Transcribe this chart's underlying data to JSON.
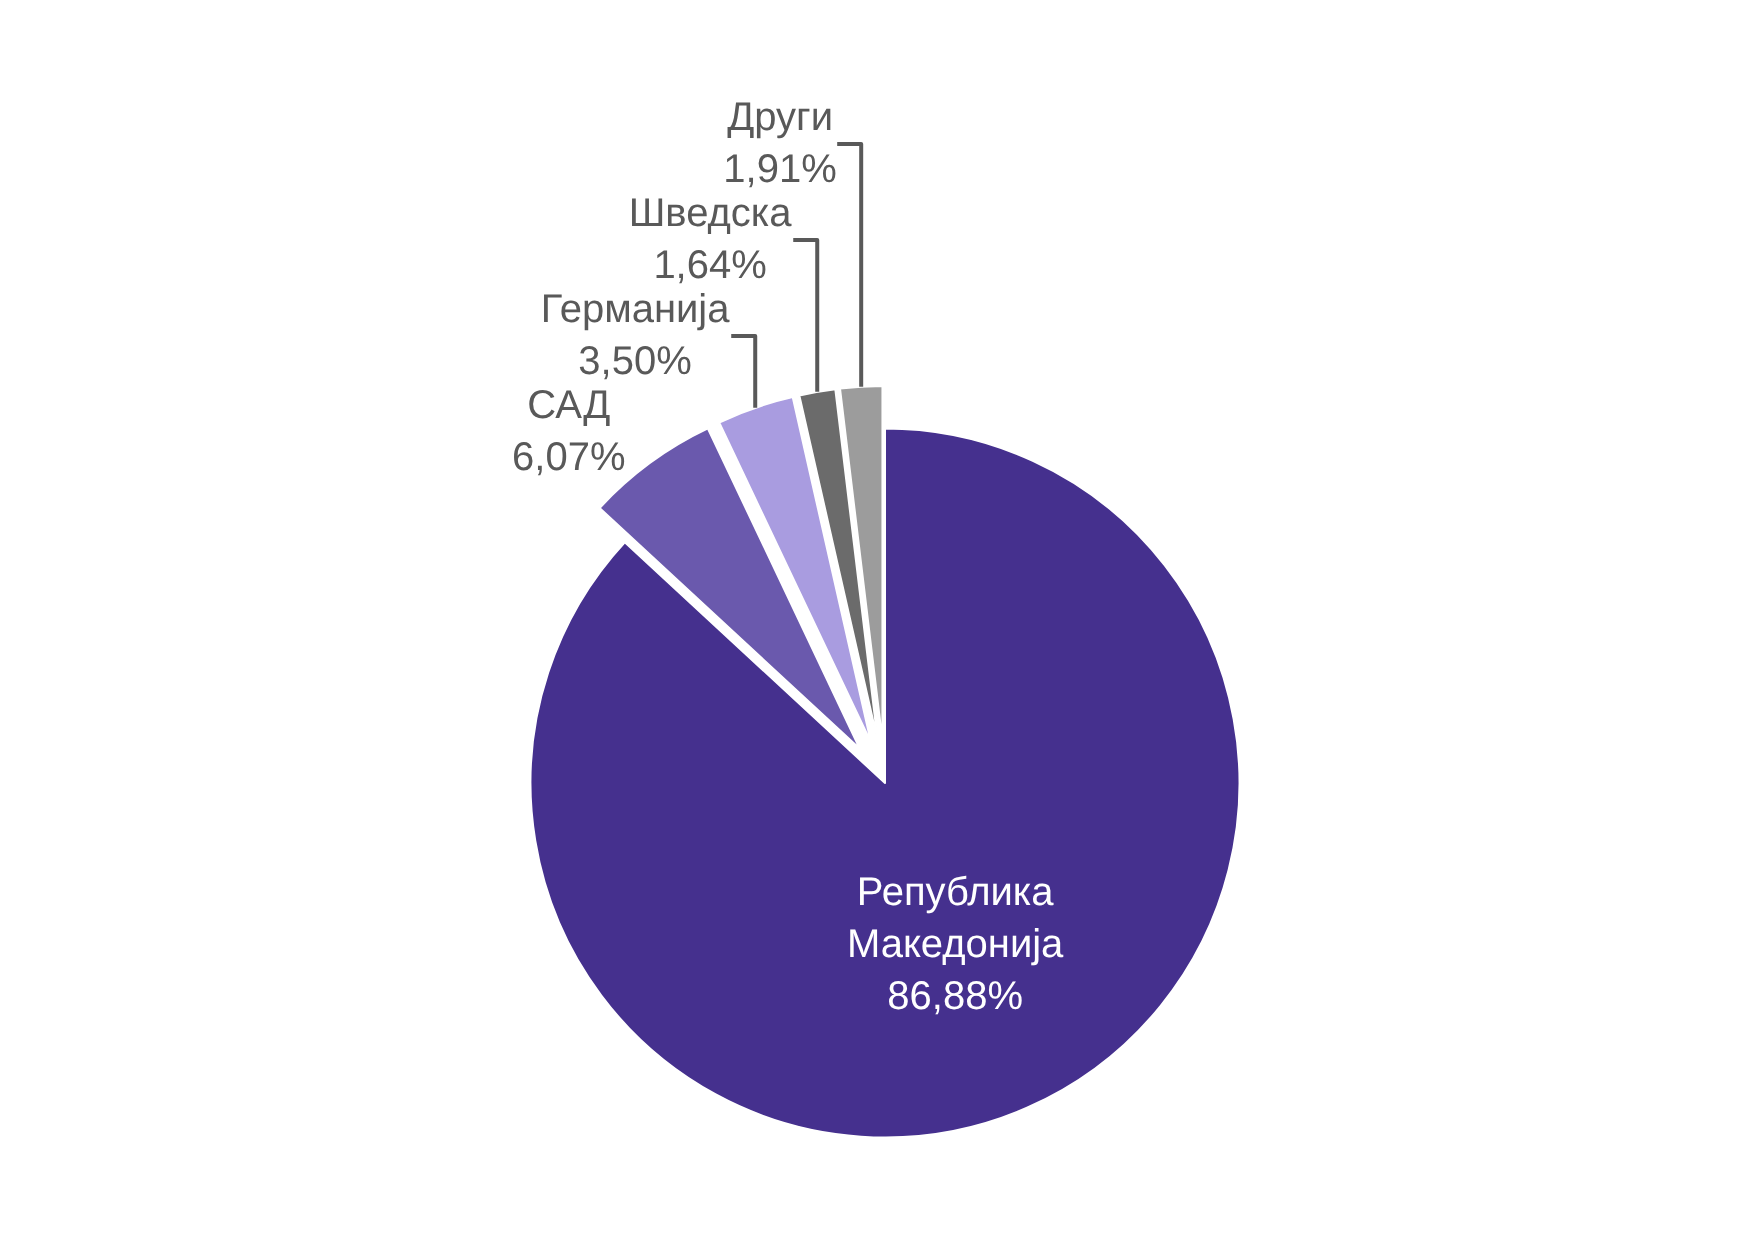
{
  "chart_data": {
    "type": "pie",
    "categories": [
      "Република Македонија",
      "САД",
      "Германија",
      "Шведска",
      "Други"
    ],
    "values": [
      86.88,
      6.07,
      3.5,
      1.64,
      1.91
    ],
    "value_labels": [
      "86,88%",
      "6,07%",
      "3,50%",
      "1,64%",
      "1,91%"
    ],
    "colors": [
      "#45308e",
      "#6a59ad",
      "#a99ce0",
      "#6b6b6b",
      "#9c9c9c"
    ],
    "legend": false
  }
}
